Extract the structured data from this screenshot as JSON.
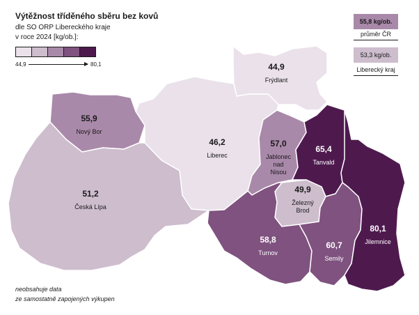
{
  "title": "Výtěžnost tříděného sběru bez kovů",
  "subtitle_line1": "dle SO ORP Libereckého kraje",
  "subtitle_line2": "v roce 2024 [kg/ob.]:",
  "legend": {
    "min": "44,9",
    "max": "80,1",
    "colors": [
      "#eae1ea",
      "#cdbdcd",
      "#a989a9",
      "#7f527f",
      "#4e1a4e"
    ]
  },
  "reference": {
    "cr": {
      "value": "55,8 kg/ob.",
      "label": "průměr ČR",
      "color": "#a989a9"
    },
    "kraj": {
      "value": "53,3 kg/ob.",
      "label": "Liberecký kraj",
      "color": "#cdbdcd"
    }
  },
  "regions": [
    {
      "id": "frydlant",
      "name": "Frýdlant",
      "value": "44,9",
      "color": "#eae1ea"
    },
    {
      "id": "liberec",
      "name": "Liberec",
      "value": "46,2",
      "color": "#eae1ea"
    },
    {
      "id": "nowy-bor",
      "name": "Nový Bor",
      "value": "55,9",
      "color": "#a989a9"
    },
    {
      "id": "ceska-lipa",
      "name": "Česká Lípa",
      "value": "51,2",
      "color": "#cdbdcd"
    },
    {
      "id": "jablonec",
      "name": "Jablonec nad Nisou",
      "name_lines": [
        "Jablonec",
        "nad",
        "Nisou"
      ],
      "value": "57,0",
      "color": "#a989a9"
    },
    {
      "id": "tanvald",
      "name": "Tanvald",
      "value": "65,4",
      "color": "#4e1a4e"
    },
    {
      "id": "zelezny-brod",
      "name": "Železný Brod",
      "name_lines": [
        "Železný",
        "Brod"
      ],
      "value": "49,9",
      "color": "#cdbdcd"
    },
    {
      "id": "turnov",
      "name": "Turnov",
      "value": "58,8",
      "color": "#7f527f"
    },
    {
      "id": "semily",
      "name": "Semily",
      "value": "60,7",
      "color": "#7f527f"
    },
    {
      "id": "jilemnice",
      "name": "Jilemnice",
      "value": "80,1",
      "color": "#4e1a4e"
    }
  ],
  "note_line1": "neobsahuje data",
  "note_line2": "ze samostatně zapojených výkupen"
}
